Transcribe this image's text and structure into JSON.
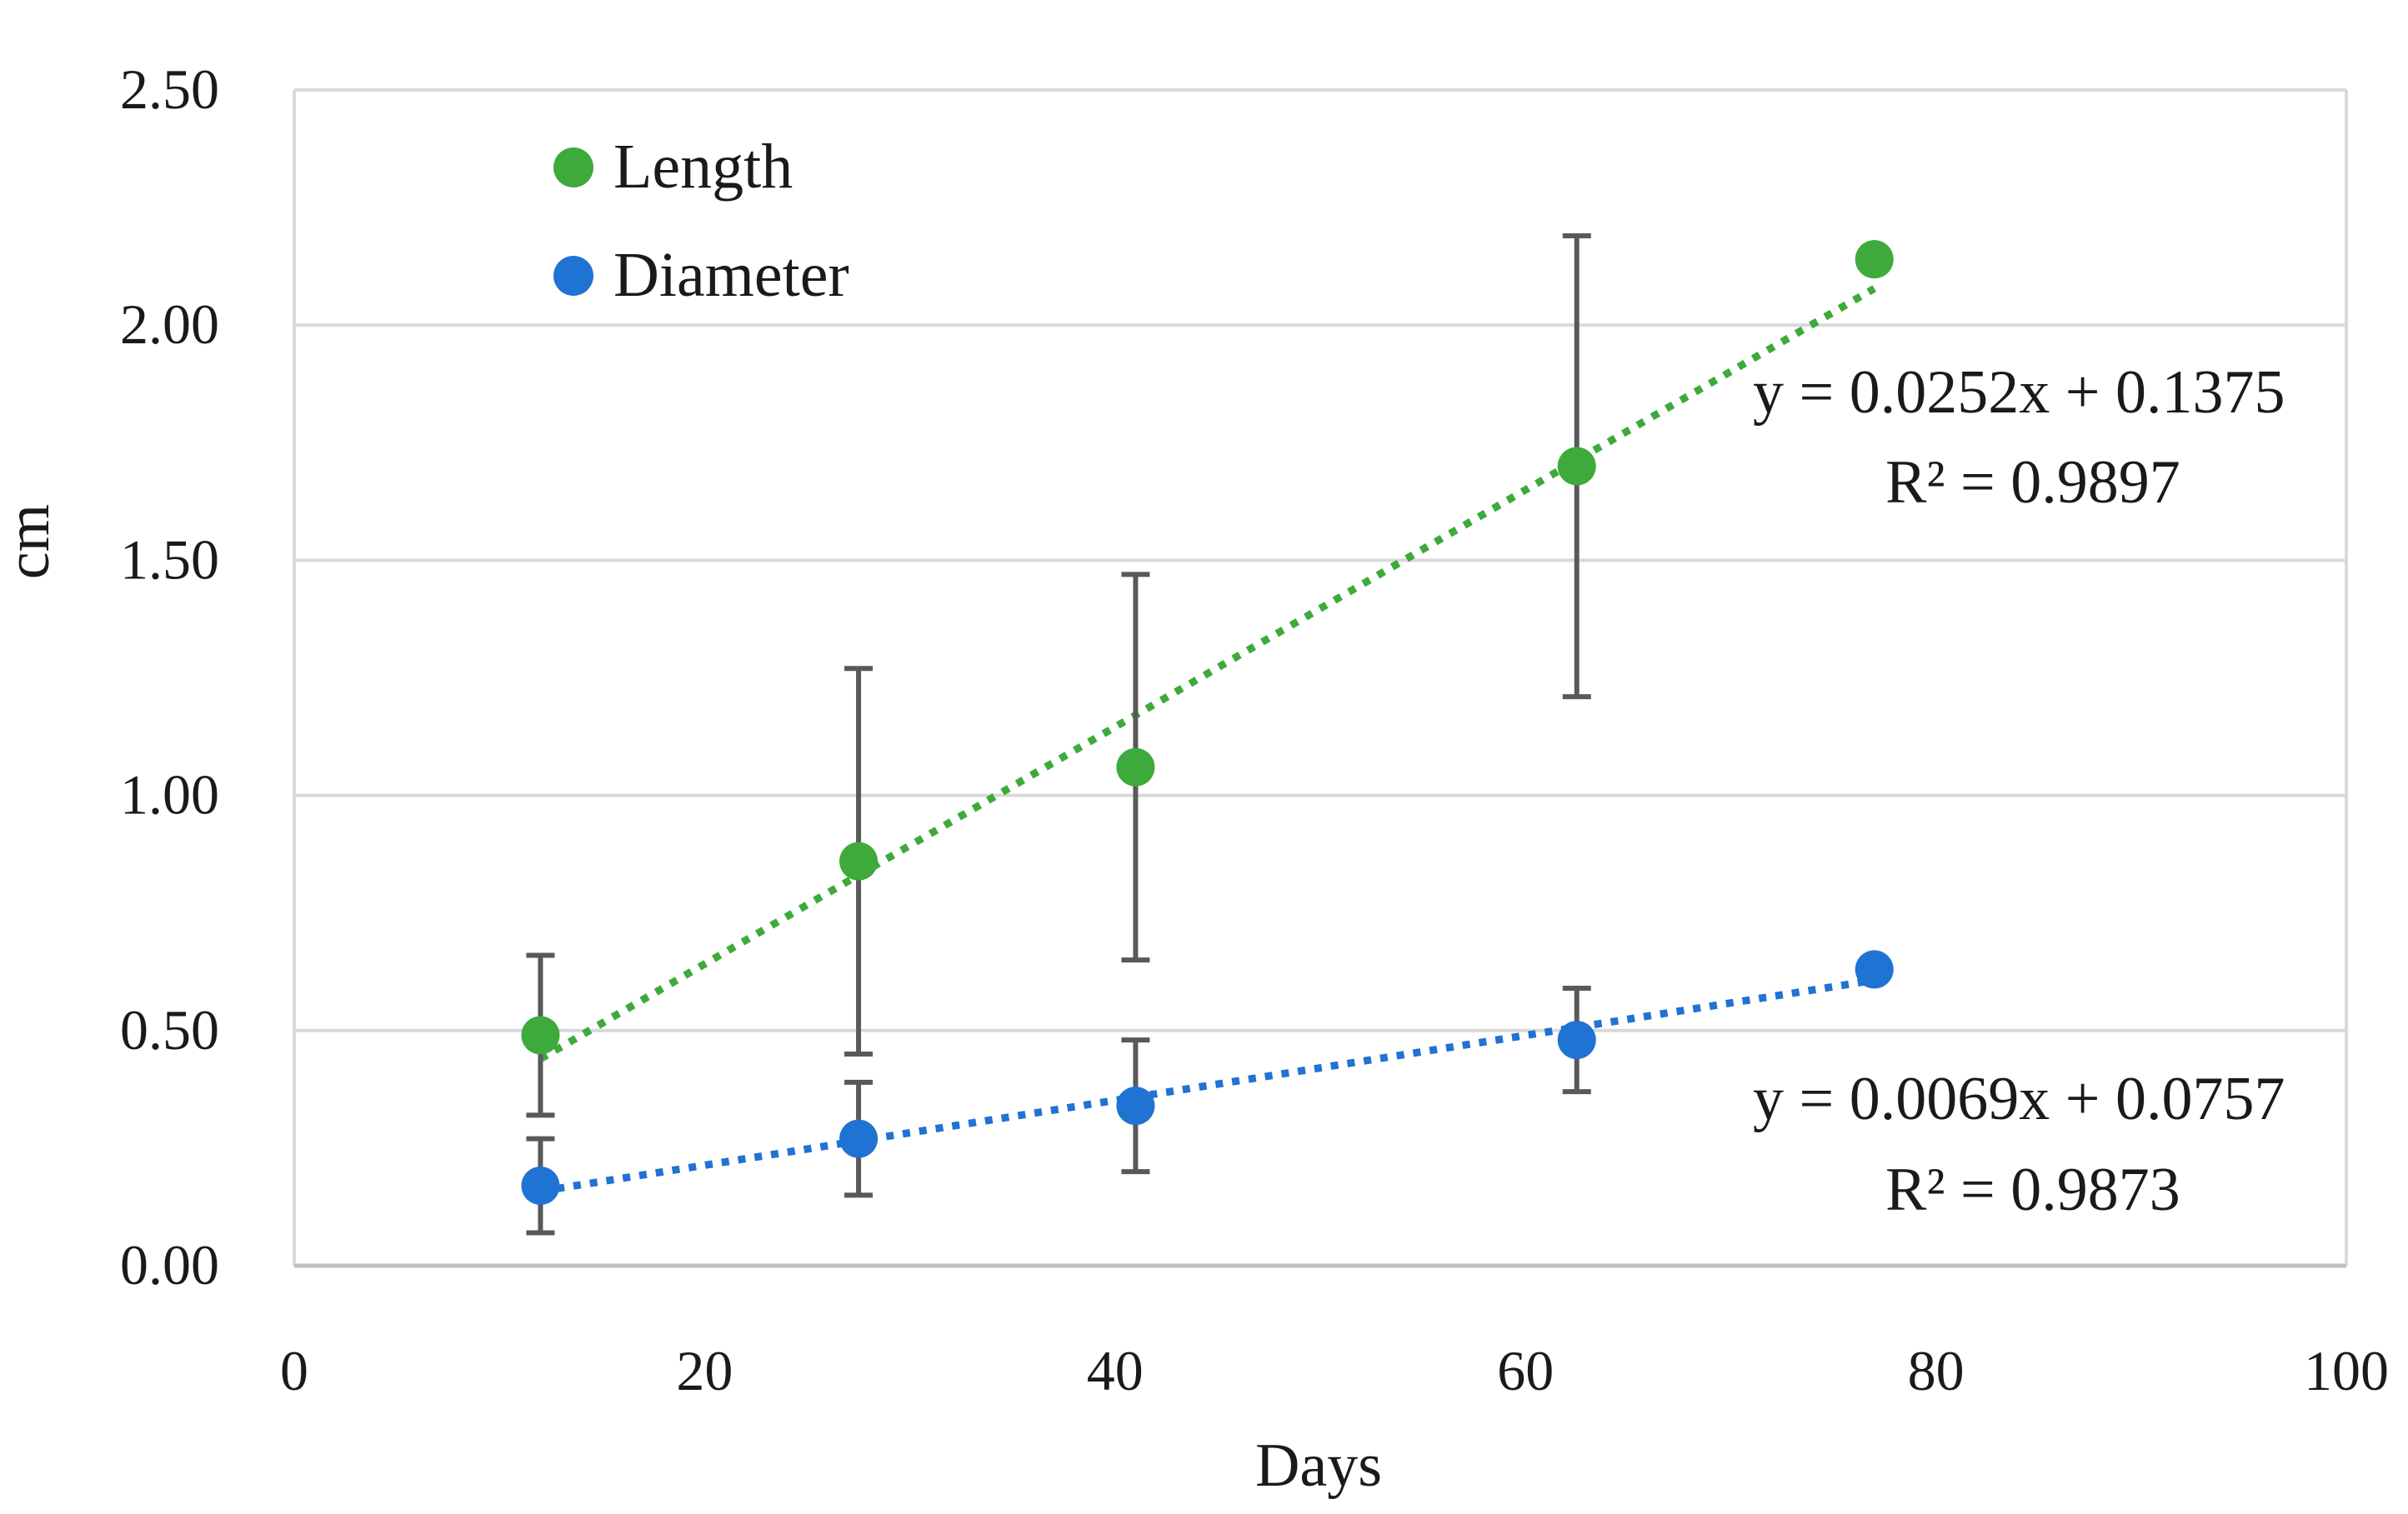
{
  "chart_data": {
    "type": "scatter",
    "title": "",
    "xlabel": "Days",
    "ylabel": "cm",
    "xlim": [
      0,
      100
    ],
    "ylim": [
      0,
      2.5
    ],
    "x_ticks": [
      "0",
      "20",
      "40",
      "60",
      "80",
      "100"
    ],
    "y_ticks": [
      "0.00",
      "0.50",
      "1.00",
      "1.50",
      "2.00",
      "2.50"
    ],
    "grid": "horizontal",
    "legend_position": "top-left",
    "series": [
      {
        "name": "Length",
        "color": "#3daa3b",
        "x": [
          12,
          27.5,
          41,
          62.5,
          77
        ],
        "y": [
          0.49,
          0.86,
          1.06,
          1.7,
          2.14
        ],
        "error": [
          0.17,
          0.41,
          0.41,
          0.49,
          null
        ],
        "trendline": {
          "slope": 0.0252,
          "intercept": 0.1375,
          "style": "dotted"
        },
        "equation": "y = 0.0252x + 0.1375",
        "r_squared": "R² = 0.9897"
      },
      {
        "name": "Diameter",
        "color": "#1f73d2",
        "x": [
          12,
          27.5,
          41,
          62.5,
          77
        ],
        "y": [
          0.17,
          0.27,
          0.34,
          0.48,
          0.63
        ],
        "error": [
          0.1,
          0.12,
          0.14,
          0.11,
          null
        ],
        "trendline": {
          "slope": 0.0069,
          "intercept": 0.0757,
          "style": "dotted"
        },
        "equation": "y = 0.0069x + 0.0757",
        "r_squared": "R² = 0.9873"
      }
    ],
    "error_bar_color": "#595959",
    "grid_color": "#d9d9d9"
  }
}
